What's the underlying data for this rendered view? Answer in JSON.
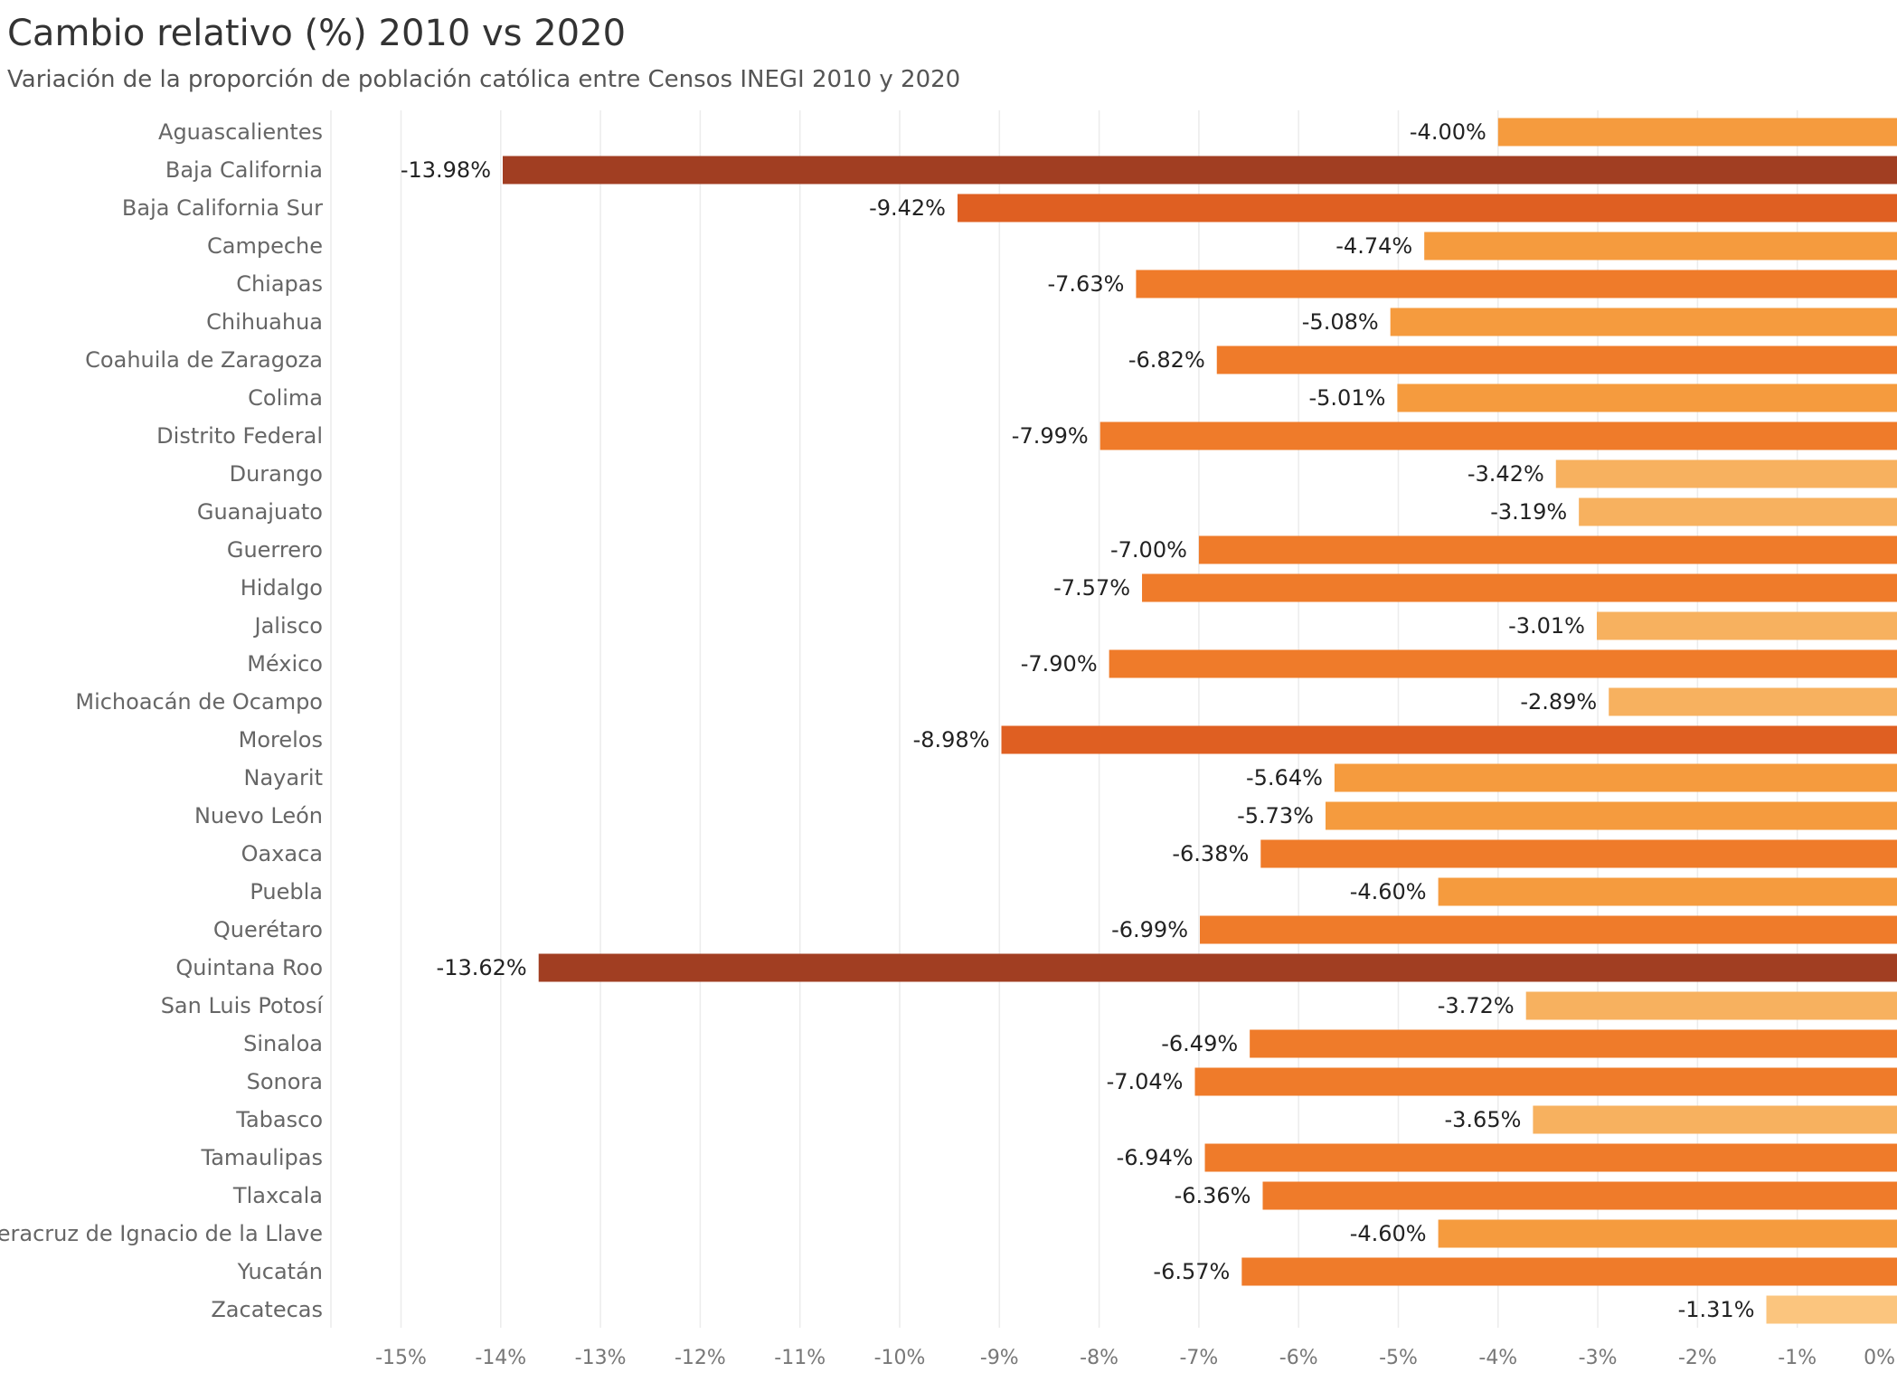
{
  "title": "Cambio relativo (%) 2010 vs 2020",
  "subtitle": "Variación de la proporción de población católica entre Censos INEGI 2010 y 2020",
  "colors": {
    "darkest": "#a13e22",
    "dark": "#df5f22",
    "mid": "#ef7b2a",
    "light": "#f59b3e",
    "lighter": "#f7b15f",
    "lightest": "#fbc57e",
    "grid": "#ececec"
  },
  "chart_data": {
    "type": "bar",
    "orientation": "horizontal",
    "title": "Cambio relativo (%) 2010 vs 2020",
    "subtitle": "Variación de la proporción de población católica entre Censos INEGI 2010 y 2020",
    "xlabel": "",
    "ylabel": "",
    "xlim": [
      -15.5,
      0
    ],
    "grid": true,
    "ticks": [
      {
        "value": -15,
        "label": "-15%"
      },
      {
        "value": -14,
        "label": "-14%"
      },
      {
        "value": -13,
        "label": "-13%"
      },
      {
        "value": -12,
        "label": "-12%"
      },
      {
        "value": -11,
        "label": "-11%"
      },
      {
        "value": -10,
        "label": "-10%"
      },
      {
        "value": -9,
        "label": "-9%"
      },
      {
        "value": -8,
        "label": "-8%"
      },
      {
        "value": -7,
        "label": "-7%"
      },
      {
        "value": -6,
        "label": "-6%"
      },
      {
        "value": -5,
        "label": "-5%"
      },
      {
        "value": -4,
        "label": "-4%"
      },
      {
        "value": -3,
        "label": "-3%"
      },
      {
        "value": -2,
        "label": "-2%"
      },
      {
        "value": -1,
        "label": "-1%"
      },
      {
        "value": 0,
        "label": "0%"
      }
    ],
    "categories": [
      "Aguascalientes",
      "Baja California",
      "Baja California Sur",
      "Campeche",
      "Chiapas",
      "Chihuahua",
      "Coahuila de Zaragoza",
      "Colima",
      "Distrito Federal",
      "Durango",
      "Guanajuato",
      "Guerrero",
      "Hidalgo",
      "Jalisco",
      "México",
      "Michoacán de Ocampo",
      "Morelos",
      "Nayarit",
      "Nuevo León",
      "Oaxaca",
      "Puebla",
      "Querétaro",
      "Quintana Roo",
      "San Luis Potosí",
      "Sinaloa",
      "Sonora",
      "Tabasco",
      "Tamaulipas",
      "Tlaxcala",
      "Veracruz de Ignacio de la Llave",
      "Yucatán",
      "Zacatecas"
    ],
    "values": [
      -4.0,
      -13.98,
      -9.42,
      -4.74,
      -7.63,
      -5.08,
      -6.82,
      -5.01,
      -7.99,
      -3.42,
      -3.19,
      -7.0,
      -7.57,
      -3.01,
      -7.9,
      -2.89,
      -8.98,
      -5.64,
      -5.73,
      -6.38,
      -4.6,
      -6.99,
      -13.62,
      -3.72,
      -6.49,
      -7.04,
      -3.65,
      -6.94,
      -6.36,
      -4.6,
      -6.57,
      -1.31
    ],
    "value_labels": [
      "-4.00%",
      "-13.98%",
      "-9.42%",
      "-4.74%",
      "-7.63%",
      "-5.08%",
      "-6.82%",
      "-5.01%",
      "-7.99%",
      "-3.42%",
      "-3.19%",
      "-7.00%",
      "-7.57%",
      "-3.01%",
      "-7.90%",
      "-2.89%",
      "-8.98%",
      "-5.64%",
      "-5.73%",
      "-6.38%",
      "-4.60%",
      "-6.99%",
      "-13.62%",
      "-3.72%",
      "-6.49%",
      "-7.04%",
      "-3.65%",
      "-6.94%",
      "-6.36%",
      "-4.60%",
      "-6.57%",
      "-1.31%"
    ]
  }
}
